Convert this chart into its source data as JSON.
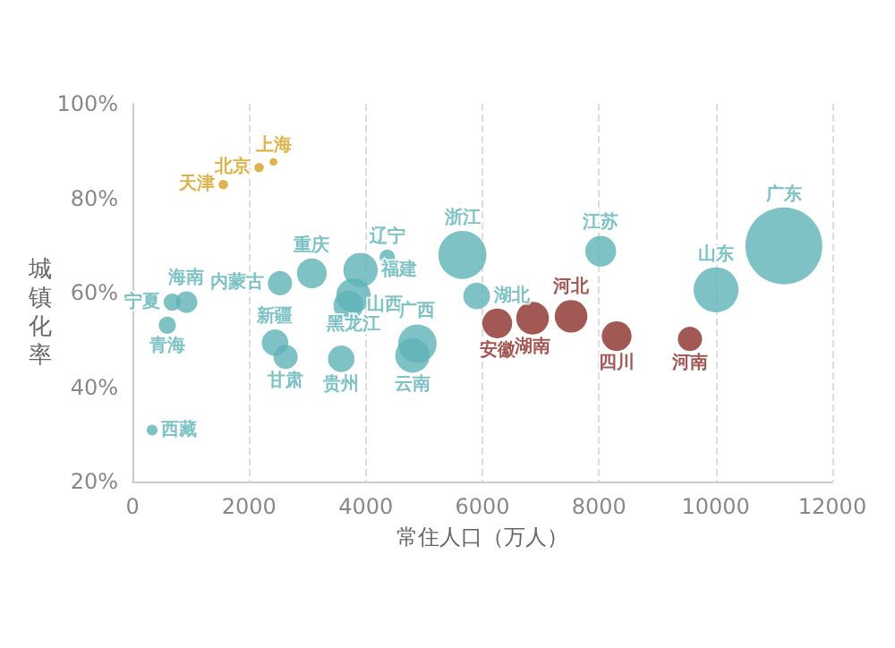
{
  "chart_data": {
    "type": "bubble",
    "xlabel": "常住人口（万人）",
    "ylabel": "城镇化率",
    "xlim": [
      0,
      12000
    ],
    "xticks": [
      0,
      2000,
      4000,
      6000,
      8000,
      10000,
      12000
    ],
    "ylim": [
      20,
      100
    ],
    "yticks": [
      {
        "value": 20,
        "label": "20%"
      },
      {
        "value": 40,
        "label": "40%"
      },
      {
        "value": 60,
        "label": "60%"
      },
      {
        "value": 80,
        "label": "80%"
      },
      {
        "value": 100,
        "label": "100%"
      }
    ],
    "grid": "x",
    "series": [
      {
        "color": "#d4a020",
        "x": [
          2171,
          1557,
          2418
        ],
        "values": [
          86.5,
          82.9,
          87.7
        ],
        "sizes": [
          0.015,
          0.015,
          0.01
        ],
        "value_labels": [
          "北京",
          "天津",
          "上海"
        ]
      },
      {
        "color": "#5fb3b6",
        "x": [
          4369,
          5657,
          8029,
          11169,
          10006,
          3075,
          5902,
          3911,
          3789,
          682,
          926,
          2529,
          3702,
          598,
          2445,
          2626,
          3580,
          4801,
          337,
          4885
        ],
        "values": [
          67.5,
          68.0,
          68.8,
          69.9,
          60.6,
          64.1,
          59.3,
          64.8,
          59.4,
          58.0,
          58.0,
          62.0,
          57.3,
          53.1,
          49.4,
          46.4,
          46.0,
          46.7,
          30.9,
          49.2
        ],
        "sizes": [
          0.04,
          0.39,
          0.16,
          1,
          0.34,
          0.15,
          0.12,
          0.2,
          0.2,
          0.05,
          0.08,
          0.1,
          0.15,
          0.05,
          0.12,
          0.1,
          0.12,
          0.2,
          0.02,
          0.25
        ],
        "value_labels": [
          "辽宁",
          "浙江",
          "江苏",
          "广东",
          "山东",
          "重庆",
          "湖北",
          "福建",
          "黑龙江",
          "宁夏",
          "海南",
          "内蒙古",
          "山西",
          "青海",
          "新疆",
          "甘肃",
          "贵州",
          "云南",
          "西藏",
          "广西"
        ]
      },
      {
        "color": "#8b2e2a",
        "x": [
          6255,
          6860,
          7520,
          8302,
          9559
        ],
        "values": [
          53.5,
          54.6,
          55.0,
          50.8,
          50.2
        ],
        "sizes": [
          0.15,
          0.18,
          0.18,
          0.15,
          0.1
        ],
        "value_labels": [
          "安徽",
          "湖南",
          "河北",
          "四川",
          "河南"
        ]
      }
    ]
  }
}
